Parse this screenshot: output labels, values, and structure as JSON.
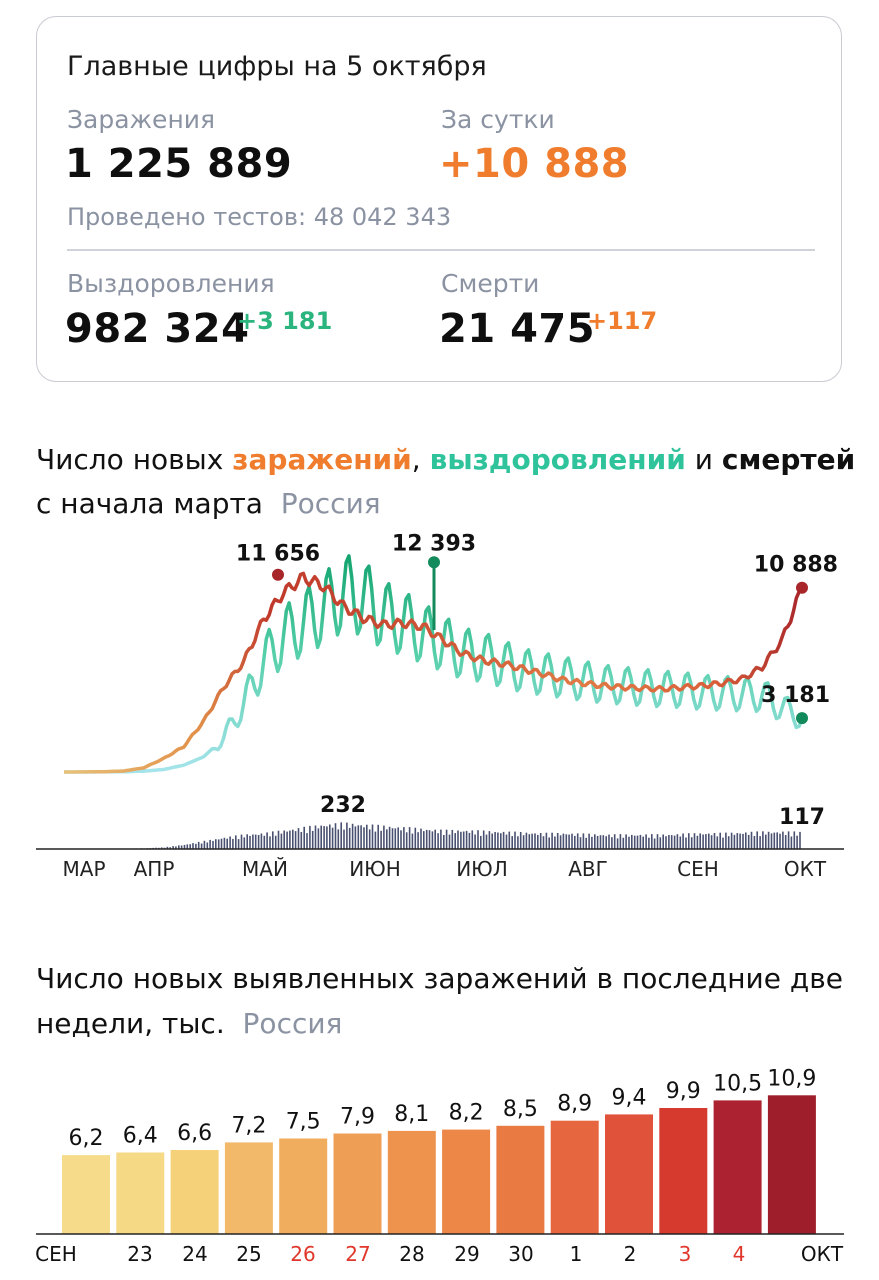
{
  "summary": {
    "title": "Главные цифры на 5 октября",
    "infections_label": "Заражения",
    "infections_value": "1 225 889",
    "daily_label": "За сутки",
    "daily_value": "+10 888",
    "tests_text": "Проведено тестов: 48 042 343",
    "recoveries_label": "Выздоровления",
    "recoveries_value": "982 324",
    "recoveries_delta": "+3 181",
    "deaths_label": "Смерти",
    "deaths_value": "21 475",
    "deaths_delta": "+117"
  },
  "chart1_heading": {
    "line1_prefix": "Число новых ",
    "infections_word": "заражений",
    "comma": ",",
    "recoveries_word": "выздоровлений",
    "and_word": " и ",
    "deaths_word": "смертей",
    "line2": "с начала марта",
    "region": "Россия"
  },
  "chart2_heading": {
    "line1": "Число новых выявленных заражений в последние две",
    "line2": "недели, тыс.",
    "region": "Россия"
  },
  "colors": {
    "infections_early": "#e8b86a",
    "infections_peak": "#c0392b",
    "recoveries_light": "#a6e4ec",
    "recoveries_dark": "#1aa577",
    "deaths_bars": "#4a5170",
    "end_infections": "#a8262a",
    "end_recoveries": "#138a5b"
  },
  "chart_data": [
    {
      "type": "line",
      "title": "Число новых заражений, выздоровлений и смертей с начала марта",
      "x_tick_labels": [
        "МАР",
        "АПР",
        "МАЙ",
        "ИЮН",
        "ИЮЛ",
        "АВГ",
        "СЕН",
        "ОКТ"
      ],
      "period": "2020-03-01 — 2020-10-05",
      "series": [
        {
          "name": "заражений",
          "weekly_avg_values": [
            0,
            5,
            20,
            60,
            250,
            800,
            1500,
            3000,
            5000,
            6500,
            9000,
            10600,
            11500,
            11000,
            9800,
            9100,
            8700,
            8800,
            8600,
            7800,
            7000,
            6600,
            6400,
            6100,
            5800,
            5450,
            5250,
            5100,
            5000,
            4950,
            4900,
            5000,
            5100,
            5250,
            5500,
            6200,
            7800,
            10888
          ],
          "annotated_points": [
            {
              "label": "11 656",
              "value": 11656
            },
            {
              "label": "10 888",
              "value": 10888
            }
          ]
        },
        {
          "name": "выздоровлений",
          "weekly_avg_values": [
            0,
            0,
            5,
            15,
            50,
            150,
            400,
            900,
            2000,
            4000,
            6500,
            8000,
            8800,
            9600,
            10600,
            10300,
            9300,
            8800,
            8200,
            7600,
            7000,
            6800,
            6400,
            6000,
            5800,
            5600,
            5400,
            5200,
            5100,
            5000,
            4900,
            4850,
            4700,
            4650,
            4600,
            4550,
            3800,
            3181
          ],
          "annotated_points": [
            {
              "label": "12 393",
              "value": 12393
            },
            {
              "label": "3 181",
              "value": 3181
            }
          ]
        },
        {
          "name": "смертей",
          "type": "bar",
          "weekly_avg_values": [
            0,
            0,
            1,
            2,
            5,
            12,
            30,
            55,
            80,
            100,
            110,
            130,
            150,
            170,
            180,
            170,
            160,
            150,
            140,
            130,
            130,
            125,
            120,
            115,
            110,
            110,
            105,
            100,
            100,
            100,
            100,
            105,
            110,
            110,
            115,
            120,
            120,
            117
          ],
          "annotated_points": [
            {
              "label": "232",
              "value": 232
            },
            {
              "label": "117",
              "value": 117
            }
          ]
        }
      ]
    },
    {
      "type": "bar",
      "title": "Число новых выявленных заражений в последние две недели, тыс.",
      "categories": [
        "СЕН",
        "23",
        "24",
        "25",
        "26",
        "27",
        "28",
        "29",
        "30",
        "1",
        "2",
        "3",
        "4",
        "ОКТ"
      ],
      "category_label_colors": [
        "#111111",
        "#111111",
        "#111111",
        "#111111",
        "#e0362b",
        "#e0362b",
        "#111111",
        "#111111",
        "#111111",
        "#111111",
        "#111111",
        "#e0362b",
        "#e0362b",
        "#111111"
      ],
      "value_labels": [
        "6,2",
        "6,4",
        "6,6",
        "7,2",
        "7,5",
        "7,9",
        "8,1",
        "8,2",
        "8,5",
        "8,9",
        "9,4",
        "9,9",
        "10,5",
        "10,9"
      ],
      "values": [
        6.2,
        6.4,
        6.6,
        7.2,
        7.5,
        7.9,
        8.1,
        8.2,
        8.5,
        8.9,
        9.4,
        9.9,
        10.5,
        10.9
      ],
      "bar_colors": [
        "#f6dc8a",
        "#f6d985",
        "#f5d27a",
        "#f2b96a",
        "#f0ad5e",
        "#ef9f55",
        "#ee934e",
        "#ec8748",
        "#e97a42",
        "#e6673f",
        "#e0523a",
        "#d63a2f",
        "#ad2230",
        "#9f1e2c"
      ],
      "ylim": [
        0,
        11
      ]
    }
  ]
}
